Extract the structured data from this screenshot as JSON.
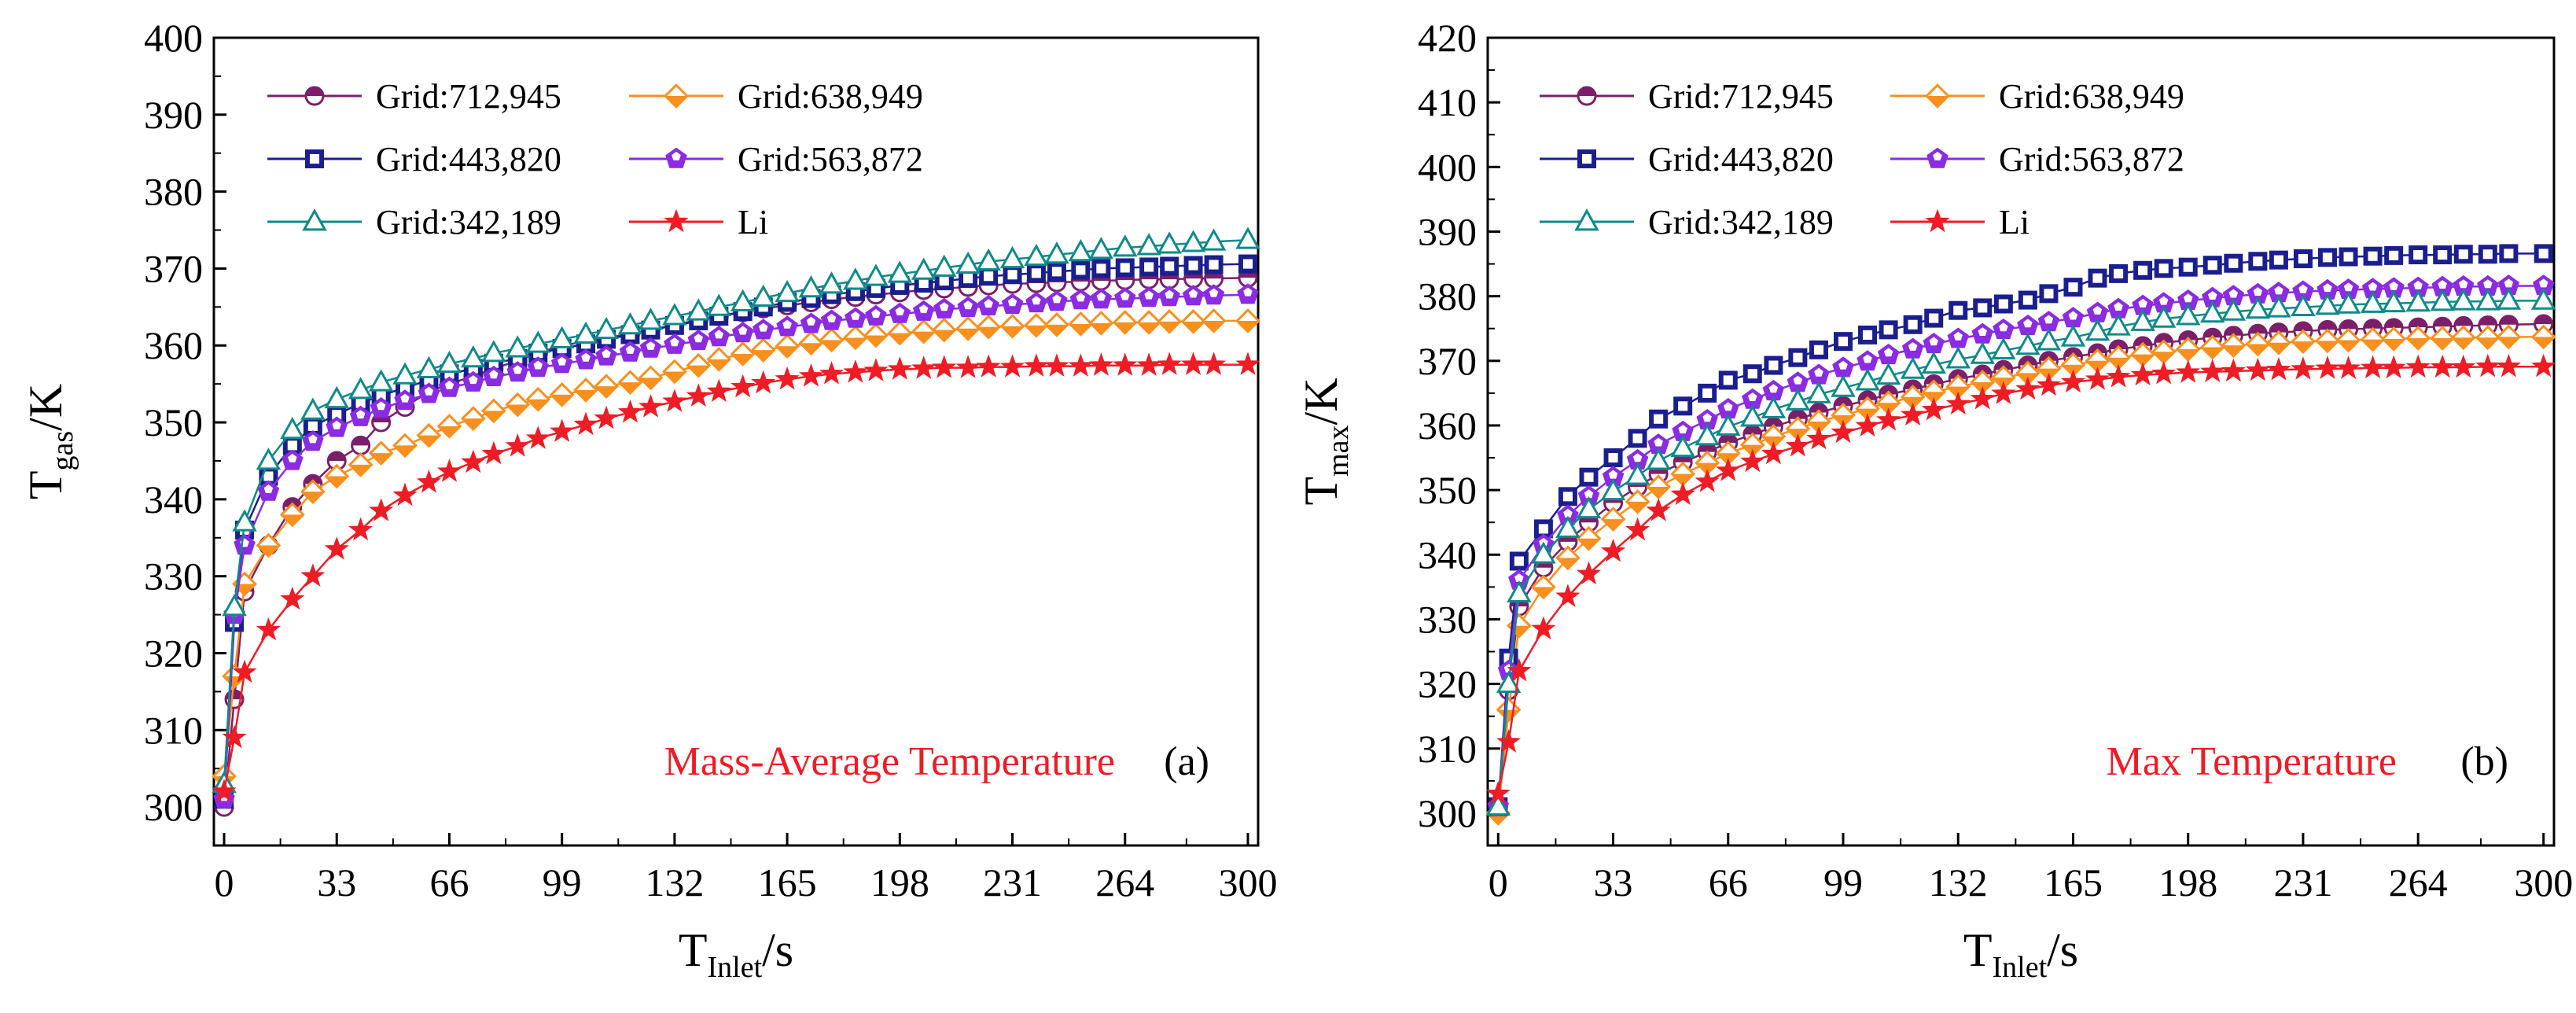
{
  "chart_data": [
    {
      "type": "line",
      "panel_label": "(a)",
      "annotation": "Mass-Average Temperature",
      "annotation_color": "#ee1c25",
      "xlabel": {
        "main": "T",
        "sub": "Inlet",
        "unit": "/s"
      },
      "ylabel": {
        "main": "T",
        "sub": "gas",
        "unit": "/K"
      },
      "xlim": [
        -3,
        303
      ],
      "ylim": [
        295,
        400
      ],
      "xticks": [
        0,
        33,
        66,
        99,
        132,
        165,
        198,
        231,
        264,
        300
      ],
      "yticks": [
        300,
        310,
        320,
        330,
        340,
        350,
        360,
        370,
        380,
        390,
        400
      ],
      "x": [
        0,
        3,
        6,
        13,
        20,
        26,
        33,
        40,
        46,
        53,
        60,
        66,
        73,
        79,
        86,
        92,
        99,
        106,
        112,
        119,
        125,
        132,
        139,
        145,
        152,
        158,
        165,
        172,
        178,
        185,
        191,
        198,
        205,
        211,
        218,
        224,
        231,
        238,
        244,
        251,
        257,
        264,
        271,
        277,
        284,
        290,
        300
      ],
      "legend": [
        "Grid:712,945",
        "Grid:638,949",
        "Grid:443,820",
        "Grid:563,872",
        "Grid:342,189",
        "Li"
      ],
      "series": [
        {
          "name": "Grid:712,945",
          "color": "#7b1f6a",
          "marker": "halfcircle",
          "values": [
            300,
            314,
            328,
            334,
            339,
            342,
            345,
            347,
            350,
            352,
            354,
            355,
            356,
            357,
            358,
            359,
            360,
            360.5,
            361,
            361.5,
            362,
            362.7,
            363.3,
            363.8,
            364.3,
            364.8,
            365.2,
            365.6,
            366,
            366.3,
            366.6,
            366.9,
            367.2,
            367.4,
            367.6,
            367.8,
            368,
            368.1,
            368.2,
            368.3,
            368.4,
            368.5,
            368.6,
            368.6,
            368.7,
            368.7,
            368.8
          ]
        },
        {
          "name": "Grid:638,949",
          "color": "#f7901e",
          "marker": "diamond",
          "values": [
            304,
            317,
            329,
            334,
            338,
            341,
            343,
            344.5,
            346,
            347,
            348.3,
            349.5,
            350.5,
            351.5,
            352.3,
            353,
            353.6,
            354.2,
            354.7,
            355.2,
            355.8,
            356.6,
            357.4,
            358.2,
            358.9,
            359.4,
            359.9,
            360.3,
            360.7,
            361,
            361.3,
            361.6,
            361.8,
            362,
            362.2,
            362.4,
            362.5,
            362.6,
            362.7,
            362.8,
            362.9,
            363,
            363,
            363.1,
            363.1,
            363.2,
            363.2
          ]
        },
        {
          "name": "Grid:443,820",
          "color": "#1b1f8e",
          "marker": "square",
          "values": [
            301,
            324,
            336,
            343,
            347,
            349.5,
            351,
            352.5,
            353.5,
            354.5,
            355.5,
            356.3,
            357,
            357.7,
            358.3,
            359,
            359.6,
            360.2,
            360.8,
            361.4,
            362,
            362.6,
            363.2,
            363.8,
            364.4,
            365,
            365.6,
            366.1,
            366.6,
            367,
            367.4,
            367.8,
            368.1,
            368.4,
            368.7,
            369,
            369.2,
            369.4,
            369.6,
            369.8,
            370,
            370.1,
            370.2,
            370.3,
            370.4,
            370.5,
            370.6
          ]
        },
        {
          "name": "Grid:563,872",
          "color": "#8b2be2",
          "marker": "pentagon",
          "values": [
            301,
            325,
            334,
            341,
            345,
            347.5,
            349.3,
            350.7,
            351.8,
            352.8,
            353.7,
            354.5,
            355.2,
            355.9,
            356.5,
            357.1,
            357.6,
            358.1,
            358.6,
            359.1,
            359.6,
            360.1,
            360.6,
            361.1,
            361.6,
            362,
            362.4,
            362.8,
            363.2,
            363.5,
            363.8,
            364.1,
            364.4,
            364.7,
            364.9,
            365.1,
            365.3,
            365.5,
            365.7,
            365.9,
            366,
            366.1,
            366.2,
            366.3,
            366.4,
            366.5,
            366.6
          ]
        },
        {
          "name": "Grid:342,189",
          "color": "#0f8a8a",
          "marker": "triangle",
          "values": [
            303,
            326,
            337,
            345,
            349,
            351.5,
            353,
            354.2,
            355.2,
            356.1,
            356.9,
            357.6,
            358.3,
            359,
            359.6,
            360.2,
            360.8,
            361.4,
            362,
            362.6,
            363.2,
            363.8,
            364.4,
            365,
            365.6,
            366.2,
            366.8,
            367.4,
            367.9,
            368.4,
            368.9,
            369.3,
            369.7,
            370.1,
            370.5,
            370.9,
            371.2,
            371.5,
            371.8,
            372.1,
            372.4,
            372.7,
            372.9,
            373.1,
            373.3,
            373.5,
            373.7
          ]
        },
        {
          "name": "Li",
          "color": "#ee1c25",
          "marker": "star",
          "values": [
            302,
            309,
            317.5,
            323,
            327,
            330,
            333.5,
            336,
            338.5,
            340.5,
            342.2,
            343.6,
            344.8,
            345.9,
            346.9,
            347.9,
            348.8,
            349.7,
            350.5,
            351.3,
            352,
            352.7,
            353.4,
            354,
            354.6,
            355.1,
            355.6,
            356,
            356.3,
            356.5,
            356.7,
            356.9,
            357,
            357.1,
            357.1,
            357.2,
            357.2,
            357.3,
            357.3,
            357.3,
            357.4,
            357.4,
            357.4,
            357.5,
            357.5,
            357.5,
            357.5
          ]
        }
      ]
    },
    {
      "type": "line",
      "panel_label": "(b)",
      "annotation": "Max Temperature",
      "annotation_color": "#ee1c25",
      "xlabel": {
        "main": "T",
        "sub": "Inlet",
        "unit": "/s"
      },
      "ylabel": {
        "main": "T",
        "sub": "max",
        "unit": "/K"
      },
      "xlim": [
        -3,
        303
      ],
      "ylim": [
        295,
        420
      ],
      "xticks": [
        0,
        33,
        66,
        99,
        132,
        165,
        198,
        231,
        264,
        300
      ],
      "yticks": [
        300,
        310,
        320,
        330,
        340,
        350,
        360,
        370,
        380,
        390,
        400,
        410,
        420
      ],
      "x": [
        0,
        3,
        6,
        13,
        20,
        26,
        33,
        40,
        46,
        53,
        60,
        66,
        73,
        79,
        86,
        92,
        99,
        106,
        112,
        119,
        125,
        132,
        139,
        145,
        152,
        158,
        165,
        172,
        178,
        185,
        191,
        198,
        205,
        211,
        218,
        224,
        231,
        238,
        244,
        251,
        257,
        264,
        271,
        277,
        284,
        290,
        300
      ],
      "legend": [
        "Grid:712,945",
        "Grid:638,949",
        "Grid:443,820",
        "Grid:563,872",
        "Grid:342,189",
        "Li"
      ],
      "series": [
        {
          "name": "Grid:712,945",
          "color": "#7b1f6a",
          "marker": "halfcircle",
          "values": [
            301,
            319,
            332,
            338,
            342,
            345,
            348,
            350.5,
            352.5,
            354.3,
            355.9,
            357.3,
            358.6,
            359.8,
            361,
            362,
            363,
            363.9,
            364.8,
            365.6,
            366.4,
            367.2,
            367.9,
            368.6,
            369.3,
            370,
            370.6,
            371.2,
            371.8,
            372.3,
            372.8,
            373.2,
            373.6,
            373.9,
            374.2,
            374.4,
            374.6,
            374.8,
            374.9,
            375,
            375.1,
            375.2,
            375.3,
            375.4,
            375.5,
            375.6,
            375.7
          ]
        },
        {
          "name": "Grid:638,949",
          "color": "#f7901e",
          "marker": "diamond",
          "values": [
            300,
            316,
            329,
            335,
            339.5,
            342.5,
            345.5,
            348.2,
            350.5,
            352.5,
            354.2,
            355.7,
            357,
            358.3,
            359.5,
            360.6,
            361.6,
            362.6,
            363.5,
            364.4,
            365.2,
            366,
            366.7,
            367.4,
            368.1,
            368.8,
            369.4,
            370,
            370.5,
            371,
            371.4,
            371.8,
            372.1,
            372.4,
            372.6,
            372.8,
            373,
            373.1,
            373.2,
            373.3,
            373.4,
            373.5,
            373.5,
            373.6,
            373.6,
            373.7,
            373.7
          ]
        },
        {
          "name": "Grid:443,820",
          "color": "#1b1f8e",
          "marker": "square",
          "values": [
            301,
            324,
            339,
            344,
            349,
            352,
            355,
            358,
            361,
            363,
            365,
            367,
            368,
            369.3,
            370.5,
            371.7,
            373,
            374,
            374.8,
            375.6,
            376.6,
            377.8,
            378.2,
            378.8,
            379.4,
            380.4,
            381.4,
            382.8,
            383.5,
            384,
            384.3,
            384.5,
            384.8,
            385.1,
            385.4,
            385.6,
            385.8,
            386,
            386.1,
            386.2,
            386.3,
            386.4,
            386.4,
            386.5,
            386.5,
            386.6,
            386.6
          ]
        },
        {
          "name": "Grid:563,872",
          "color": "#8b2be2",
          "marker": "pentagon",
          "values": [
            301,
            322,
            336,
            341.5,
            346,
            349,
            352,
            354.6,
            357,
            359,
            360.8,
            362.5,
            364,
            365.3,
            366.6,
            367.8,
            368.9,
            369.9,
            370.9,
            371.8,
            372.6,
            373.4,
            374.1,
            374.8,
            375.4,
            376,
            376.6,
            377.4,
            378,
            378.5,
            378.9,
            379.3,
            379.7,
            380,
            380.3,
            380.5,
            380.7,
            380.9,
            381,
            381.1,
            381.2,
            381.3,
            381.4,
            381.5,
            381.5,
            381.6,
            381.6
          ]
        },
        {
          "name": "Grid:342,189",
          "color": "#0f8a8a",
          "marker": "triangle",
          "values": [
            301,
            320,
            334,
            340,
            344,
            347,
            349.8,
            352.2,
            354.5,
            356.5,
            358.3,
            359.8,
            361.2,
            362.5,
            363.7,
            364.8,
            365.8,
            366.8,
            367.7,
            368.6,
            369.4,
            370.2,
            370.9,
            371.6,
            372.3,
            373,
            373.6,
            374.5,
            375.3,
            376,
            376.5,
            376.9,
            377.3,
            377.6,
            377.9,
            378.1,
            378.3,
            378.5,
            378.7,
            378.8,
            378.9,
            379,
            379.1,
            379.2,
            379.2,
            379.3,
            379.3
          ]
        },
        {
          "name": "Li",
          "color": "#ee1c25",
          "marker": "star",
          "values": [
            303,
            311,
            322,
            328.5,
            333.5,
            337,
            340.5,
            343.8,
            346.8,
            349.3,
            351.3,
            353,
            354.4,
            355.6,
            356.8,
            357.9,
            358.9,
            359.9,
            360.8,
            361.6,
            362.4,
            363.3,
            364.1,
            364.9,
            365.6,
            366.2,
            366.7,
            367.1,
            367.5,
            367.8,
            368,
            368.2,
            368.3,
            368.4,
            368.5,
            368.6,
            368.7,
            368.8,
            368.8,
            368.9,
            368.9,
            369,
            369,
            369,
            369.1,
            369.1,
            369.1
          ]
        }
      ]
    }
  ]
}
